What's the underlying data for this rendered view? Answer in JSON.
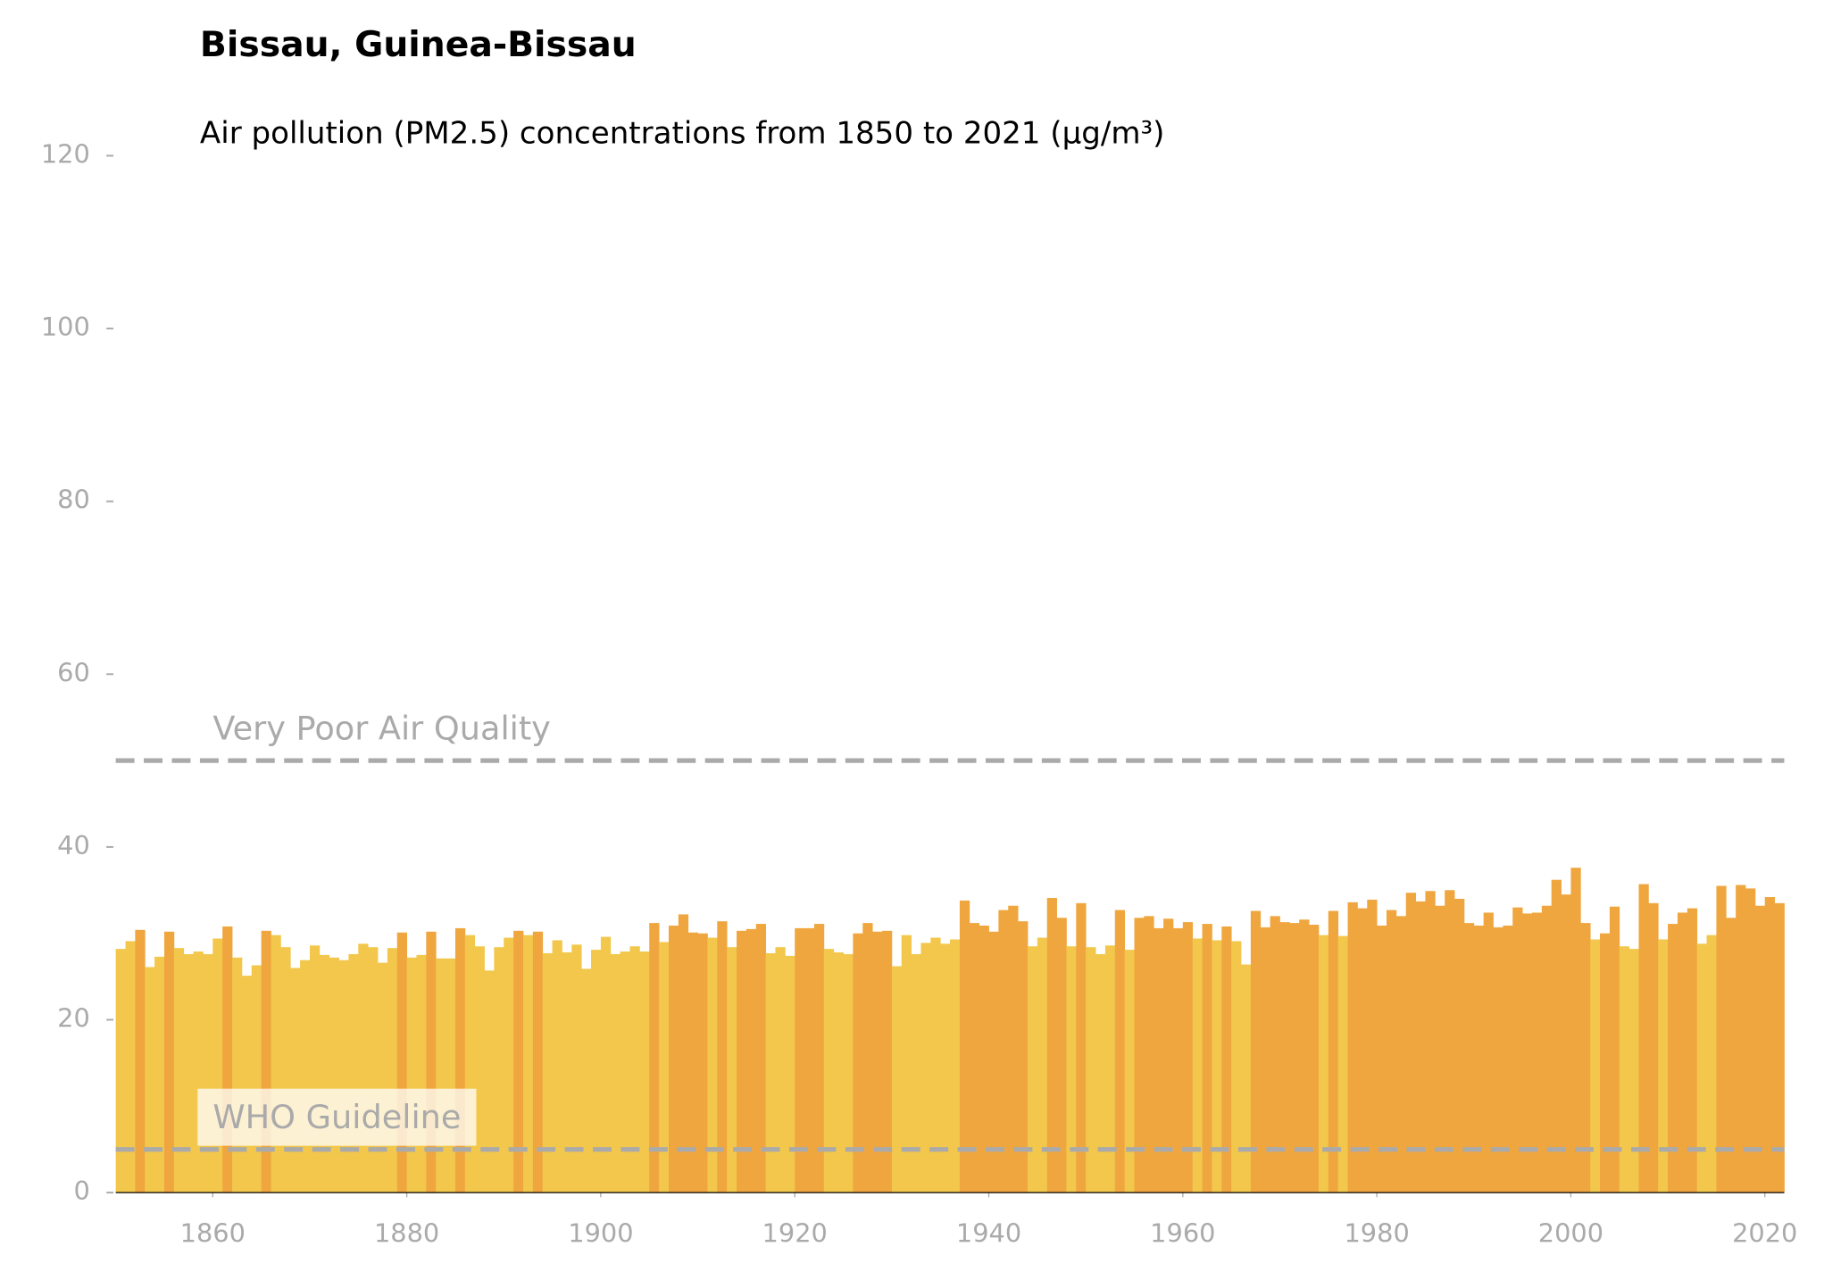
{
  "chart_data": {
    "type": "bar",
    "title": "Bissau, Guinea-Bissau",
    "subtitle": "Air pollution (PM2.5) concentrations from 1850 to 2021 (µg/m³)",
    "x": [
      1850,
      1851,
      1852,
      1853,
      1854,
      1855,
      1856,
      1857,
      1858,
      1859,
      1860,
      1861,
      1862,
      1863,
      1864,
      1865,
      1866,
      1867,
      1868,
      1869,
      1870,
      1871,
      1872,
      1873,
      1874,
      1875,
      1876,
      1877,
      1878,
      1879,
      1880,
      1881,
      1882,
      1883,
      1884,
      1885,
      1886,
      1887,
      1888,
      1889,
      1890,
      1891,
      1892,
      1893,
      1894,
      1895,
      1896,
      1897,
      1898,
      1899,
      1900,
      1901,
      1902,
      1903,
      1904,
      1905,
      1906,
      1907,
      1908,
      1909,
      1910,
      1911,
      1912,
      1913,
      1914,
      1915,
      1916,
      1917,
      1918,
      1919,
      1920,
      1921,
      1922,
      1923,
      1924,
      1925,
      1926,
      1927,
      1928,
      1929,
      1930,
      1931,
      1932,
      1933,
      1934,
      1935,
      1936,
      1937,
      1938,
      1939,
      1940,
      1941,
      1942,
      1943,
      1944,
      1945,
      1946,
      1947,
      1948,
      1949,
      1950,
      1951,
      1952,
      1953,
      1954,
      1955,
      1956,
      1957,
      1958,
      1959,
      1960,
      1961,
      1962,
      1963,
      1964,
      1965,
      1966,
      1967,
      1968,
      1969,
      1970,
      1971,
      1972,
      1973,
      1974,
      1975,
      1976,
      1977,
      1978,
      1979,
      1980,
      1981,
      1982,
      1983,
      1984,
      1985,
      1986,
      1987,
      1988,
      1989,
      1990,
      1991,
      1992,
      1993,
      1994,
      1995,
      1996,
      1997,
      1998,
      1999,
      2000,
      2001,
      2002,
      2003,
      2004,
      2005,
      2006,
      2007,
      2008,
      2009,
      2010,
      2011,
      2012,
      2013,
      2014,
      2015,
      2016,
      2017,
      2018,
      2019,
      2020,
      2021
    ],
    "values": [
      28.2,
      29.1,
      30.4,
      26.1,
      27.3,
      30.2,
      28.3,
      27.6,
      27.9,
      27.6,
      29.4,
      30.8,
      27.2,
      25.1,
      26.3,
      30.3,
      29.8,
      28.4,
      26.0,
      26.9,
      28.6,
      27.5,
      27.2,
      26.9,
      27.6,
      28.8,
      28.4,
      26.6,
      28.3,
      30.1,
      27.2,
      27.5,
      30.2,
      27.1,
      27.1,
      30.6,
      29.8,
      28.5,
      25.7,
      28.4,
      29.5,
      30.3,
      29.8,
      30.2,
      27.7,
      29.2,
      27.8,
      28.7,
      25.9,
      28.1,
      29.6,
      27.6,
      27.9,
      28.5,
      27.9,
      31.2,
      29.0,
      30.9,
      32.2,
      30.1,
      30.0,
      29.5,
      31.4,
      28.4,
      30.3,
      30.5,
      31.1,
      27.7,
      28.4,
      27.4,
      30.6,
      30.6,
      31.1,
      28.2,
      27.8,
      27.6,
      30.0,
      31.2,
      30.2,
      30.3,
      26.2,
      29.8,
      27.6,
      28.9,
      29.5,
      28.8,
      29.3,
      33.8,
      31.2,
      30.9,
      30.2,
      32.7,
      33.2,
      31.4,
      28.5,
      29.5,
      34.1,
      31.8,
      28.5,
      33.5,
      28.4,
      27.6,
      28.6,
      32.7,
      28.1,
      31.8,
      32.0,
      30.6,
      31.7,
      30.6,
      31.3,
      29.4,
      31.1,
      29.2,
      30.8,
      29.1,
      26.4,
      32.6,
      30.7,
      32.0,
      31.3,
      31.2,
      31.6,
      31.0,
      29.8,
      32.6,
      29.7,
      33.6,
      32.9,
      33.9,
      30.9,
      32.7,
      32.0,
      34.7,
      33.7,
      34.9,
      33.2,
      35.0,
      34.0,
      31.2,
      30.9,
      32.4,
      30.7,
      30.9,
      33.0,
      32.3,
      32.4,
      33.2,
      36.2,
      34.5,
      37.6,
      31.2,
      29.3,
      30.0,
      33.1,
      28.5,
      28.2,
      35.7,
      33.5,
      29.3,
      31.1,
      32.4,
      32.9,
      28.8,
      29.8,
      35.5,
      31.8,
      35.6,
      35.2,
      33.2,
      34.2,
      33.5
    ],
    "colors": [
      "#f2c74b",
      "#f2c74b",
      "#f0a63f",
      "#f2c74b",
      "#f2c74b",
      "#f0a63f",
      "#f2c74b",
      "#f2c74b",
      "#f2c74b",
      "#f2c74b",
      "#f2c74b",
      "#f0a63f",
      "#f2c74b",
      "#f2c74b",
      "#f2c74b",
      "#f0a63f",
      "#f2c74b",
      "#f2c74b",
      "#f2c74b",
      "#f2c74b",
      "#f2c74b",
      "#f2c74b",
      "#f2c74b",
      "#f2c74b",
      "#f2c74b",
      "#f2c74b",
      "#f2c74b",
      "#f2c74b",
      "#f2c74b",
      "#f0a63f",
      "#f2c74b",
      "#f2c74b",
      "#f0a63f",
      "#f2c74b",
      "#f2c74b",
      "#f0a63f",
      "#f2c74b",
      "#f2c74b",
      "#f2c74b",
      "#f2c74b",
      "#f2c74b",
      "#f0a63f",
      "#f2c74b",
      "#f0a63f",
      "#f2c74b",
      "#f2c74b",
      "#f2c74b",
      "#f2c74b",
      "#f2c74b",
      "#f2c74b",
      "#f2c74b",
      "#f2c74b",
      "#f2c74b",
      "#f2c74b",
      "#f2c74b",
      "#f0a63f",
      "#f2c74b",
      "#f0a63f",
      "#f0a63f",
      "#f0a63f",
      "#f0a63f",
      "#f2c74b",
      "#f0a63f",
      "#f2c74b",
      "#f0a63f",
      "#f0a63f",
      "#f0a63f",
      "#f2c74b",
      "#f2c74b",
      "#f2c74b",
      "#f0a63f",
      "#f0a63f",
      "#f0a63f",
      "#f2c74b",
      "#f2c74b",
      "#f2c74b",
      "#f0a63f",
      "#f0a63f",
      "#f0a63f",
      "#f0a63f",
      "#f2c74b",
      "#f2c74b",
      "#f2c74b",
      "#f2c74b",
      "#f2c74b",
      "#f2c74b",
      "#f2c74b",
      "#f0a63f",
      "#f0a63f",
      "#f0a63f",
      "#f0a63f",
      "#f0a63f",
      "#f0a63f",
      "#f0a63f",
      "#f2c74b",
      "#f2c74b",
      "#f0a63f",
      "#f0a63f",
      "#f2c74b",
      "#f0a63f",
      "#f2c74b",
      "#f2c74b",
      "#f2c74b",
      "#f0a63f",
      "#f2c74b",
      "#f0a63f",
      "#f0a63f",
      "#f0a63f",
      "#f0a63f",
      "#f0a63f",
      "#f0a63f",
      "#f2c74b",
      "#f0a63f",
      "#f2c74b",
      "#f0a63f",
      "#f2c74b",
      "#f2c74b",
      "#f0a63f",
      "#f0a63f",
      "#f0a63f",
      "#f0a63f",
      "#f0a63f",
      "#f0a63f",
      "#f0a63f",
      "#f2c74b",
      "#f0a63f",
      "#f2c74b",
      "#f0a63f",
      "#f0a63f",
      "#f0a63f",
      "#f0a63f",
      "#f0a63f",
      "#f0a63f",
      "#f0a63f",
      "#f0a63f",
      "#f0a63f",
      "#f0a63f",
      "#f0a63f",
      "#f0a63f",
      "#f0a63f",
      "#f0a63f",
      "#f0a63f",
      "#f0a63f",
      "#f0a63f",
      "#f0a63f",
      "#f0a63f",
      "#f0a63f",
      "#f0a63f",
      "#f0a63f",
      "#f0a63f",
      "#f0a63f",
      "#f0a63f",
      "#f2c74b",
      "#f0a63f",
      "#f0a63f",
      "#f2c74b",
      "#f2c74b",
      "#f0a63f",
      "#f0a63f",
      "#f2c74b",
      "#f0a63f",
      "#f0a63f",
      "#f0a63f",
      "#f2c74b",
      "#f2c74b",
      "#f0a63f",
      "#f0a63f",
      "#f0a63f",
      "#f0a63f",
      "#f0a63f",
      "#f0a63f",
      "#f0a63f"
    ],
    "xlim": [
      1850,
      2022
    ],
    "xticks": [
      1860,
      1880,
      1900,
      1920,
      1940,
      1960,
      1980,
      2000,
      2020
    ],
    "ylim": [
      0,
      120
    ],
    "yticks": [
      0,
      20,
      40,
      60,
      80,
      100,
      120
    ],
    "reference_lines": [
      {
        "value": 50,
        "label": "Very Poor Air Quality",
        "color": "#aaaaaa"
      },
      {
        "value": 5,
        "label": "WHO Guideline",
        "color": "#aaaaaa"
      }
    ]
  }
}
